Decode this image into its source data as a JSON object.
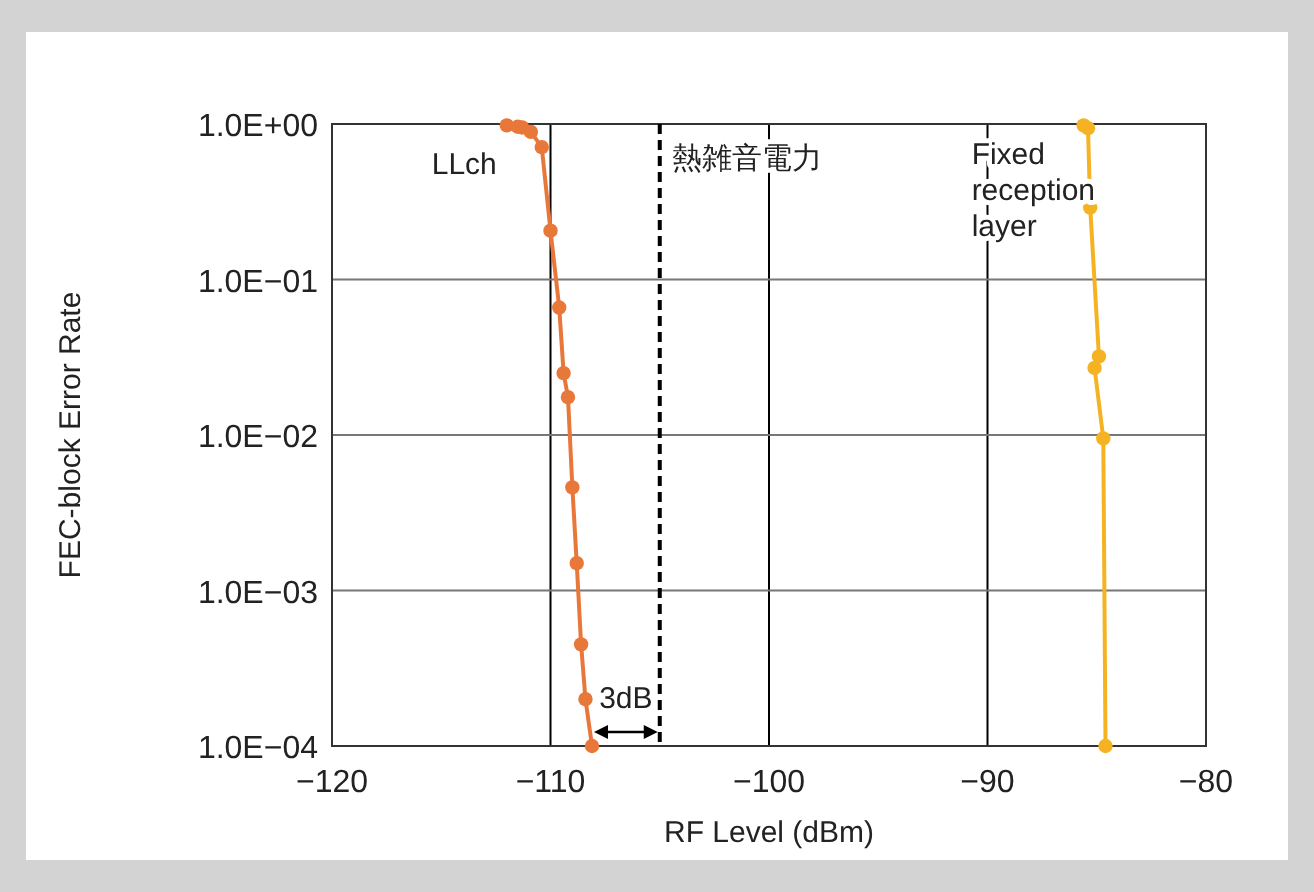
{
  "chart_data": {
    "type": "line",
    "xlabel": "RF Level (dBm)",
    "ylabel": "FEC-block Error Rate",
    "xlim": [
      -120,
      -80
    ],
    "xticks": [
      {
        "value": -120,
        "label": "−120"
      },
      {
        "value": -110,
        "label": "−110"
      },
      {
        "value": -100,
        "label": "−100"
      },
      {
        "value": -90,
        "label": "−90"
      },
      {
        "value": -80,
        "label": "−80"
      }
    ],
    "ylim": [
      0.0001,
      1
    ],
    "yticks": [
      {
        "value": 0.0001,
        "label": "1.0E−04"
      },
      {
        "value": 0.001,
        "label": "1.0E−03"
      },
      {
        "value": 0.01,
        "label": "1.0E−02"
      },
      {
        "value": 0.1,
        "label": "1.0E−01"
      },
      {
        "value": 1,
        "label": "1.0E+00"
      }
    ],
    "log": "y",
    "grid": true,
    "marker": "circle",
    "line_style": "solid",
    "series": [
      {
        "name": "LLch",
        "color": "#e8773a",
        "x": [
          -112.0,
          -111.5,
          -111.3,
          -110.9,
          -110.4,
          -110.0,
          -109.6,
          -109.4,
          -109.2,
          -109.0,
          -108.8,
          -108.6,
          -108.4,
          -108.1
        ],
        "values": [
          0.98,
          0.96,
          0.95,
          0.89,
          0.71,
          0.206,
          0.066,
          0.025,
          0.0175,
          0.0046,
          0.0015,
          0.00045,
          0.0002,
          0.0001
        ]
      },
      {
        "name": "Fixed reception layer",
        "color": "#f5b324",
        "x": [
          -85.6,
          -85.4,
          -85.3,
          -84.9,
          -85.1,
          -84.7,
          -84.6
        ],
        "values": [
          0.98,
          0.94,
          0.29,
          0.032,
          0.027,
          0.0095,
          0.0001
        ]
      }
    ],
    "ref_lines": [
      {
        "axis": "x",
        "value": -105,
        "label": "熱雑音電力",
        "color": "#000000",
        "line_style": "dashed"
      }
    ],
    "annotations": [
      "3dB"
    ]
  }
}
